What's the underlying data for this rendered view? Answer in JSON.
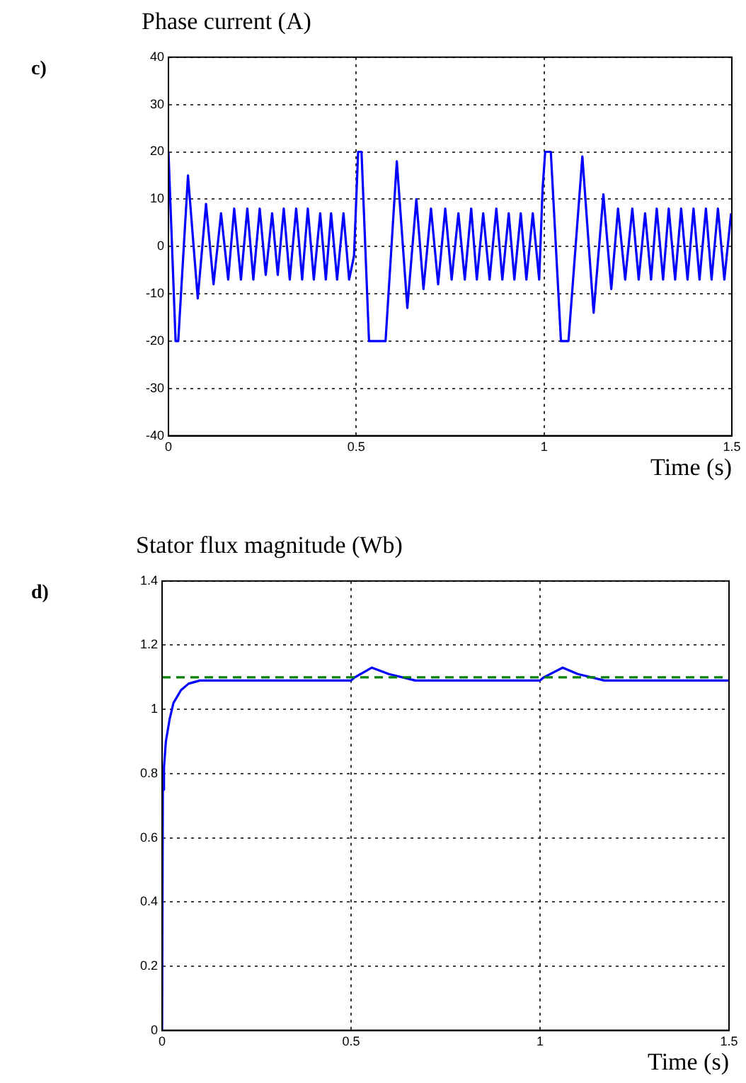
{
  "chart_data": [
    {
      "type": "line",
      "title": "Phase current (A)",
      "xlabel": "Time (s)",
      "annotations": [
        "c)"
      ],
      "xlim": [
        0,
        1.5
      ],
      "xticks": [
        0,
        0.5,
        1,
        1.5
      ],
      "ylim": [
        -40,
        40
      ],
      "yticks": [
        -40,
        -30,
        -20,
        -10,
        0,
        10,
        20,
        30,
        40
      ],
      "grid": true,
      "legend": false,
      "marker": "none",
      "line_style": "solid",
      "series": [
        {
          "color": "#0000ff",
          "x": [
            0,
            0.019,
            0.026,
            0.052,
            0.078,
            0.1,
            0.12,
            0.14,
            0.159,
            0.175,
            0.193,
            0.21,
            0.226,
            0.243,
            0.259,
            0.276,
            0.291,
            0.307,
            0.323,
            0.34,
            0.356,
            0.371,
            0.387,
            0.404,
            0.419,
            0.433,
            0.449,
            0.466,
            0.481,
            0.494,
            0.505,
            0.514,
            0.534,
            0.578,
            0.608,
            0.636,
            0.66,
            0.679,
            0.699,
            0.718,
            0.737,
            0.754,
            0.772,
            0.789,
            0.806,
            0.821,
            0.838,
            0.855,
            0.873,
            0.889,
            0.906,
            0.921,
            0.938,
            0.953,
            0.97,
            0.987,
            0.996,
            1.003,
            1.018,
            1.045,
            1.065,
            1.102,
            1.132,
            1.158,
            1.179,
            1.197,
            1.216,
            1.235,
            1.252,
            1.269,
            1.285,
            1.3,
            1.317,
            1.332,
            1.349,
            1.365,
            1.382,
            1.398,
            1.414,
            1.431,
            1.446,
            1.463,
            1.48,
            1.498
          ],
          "values": [
            20,
            -20,
            -20,
            15,
            -11,
            9,
            -8,
            7,
            -7,
            8,
            -7,
            8,
            -7,
            8,
            -6,
            7,
            -6,
            8,
            -7,
            8,
            -7,
            8,
            -7,
            7,
            -7,
            7,
            -7,
            7,
            -7,
            -2,
            20,
            20,
            -20,
            -20,
            18,
            -13,
            10,
            -9,
            8,
            -8,
            8,
            -7,
            7,
            -7,
            8,
            -7,
            7,
            -7,
            8,
            -7,
            7,
            -7,
            7,
            -7,
            7,
            -7,
            12,
            20,
            20,
            -20,
            -20,
            19,
            -14,
            11,
            -9,
            8,
            -7,
            8,
            -7,
            7,
            -7,
            8,
            -7,
            8,
            -7,
            8,
            -7,
            8,
            -7,
            8,
            -7,
            8,
            -7,
            7
          ]
        }
      ]
    },
    {
      "type": "line",
      "title": "Stator flux magnitude (Wb)",
      "xlabel": "Time (s)",
      "annotations": [
        "d)"
      ],
      "xlim": [
        0,
        1.5
      ],
      "xticks": [
        0,
        0.5,
        1,
        1.5
      ],
      "ylim": [
        0,
        1.4
      ],
      "yticks": [
        0,
        0.2,
        0.4,
        0.6,
        0.8,
        1,
        1.2,
        1.4
      ],
      "grid": true,
      "legend": false,
      "marker": "none",
      "line_style": "solid",
      "ref_lines": [
        {
          "axis": "y",
          "value": 1.1,
          "color": "#008000",
          "line_style": "dashed"
        }
      ],
      "series": [
        {
          "color": "#0000ff",
          "x": [
            0,
            0.002,
            0.005,
            0.01,
            0.02,
            0.03,
            0.05,
            0.07,
            0.1,
            0.5,
            0.51,
            0.555,
            0.6,
            0.67,
            1.0,
            1.01,
            1.06,
            1.1,
            1.17,
            1.5
          ],
          "values": [
            0,
            0.75,
            0.82,
            0.9,
            0.97,
            1.02,
            1.06,
            1.08,
            1.09,
            1.09,
            1.1,
            1.13,
            1.11,
            1.09,
            1.09,
            1.1,
            1.13,
            1.11,
            1.09,
            1.09
          ]
        }
      ]
    }
  ]
}
